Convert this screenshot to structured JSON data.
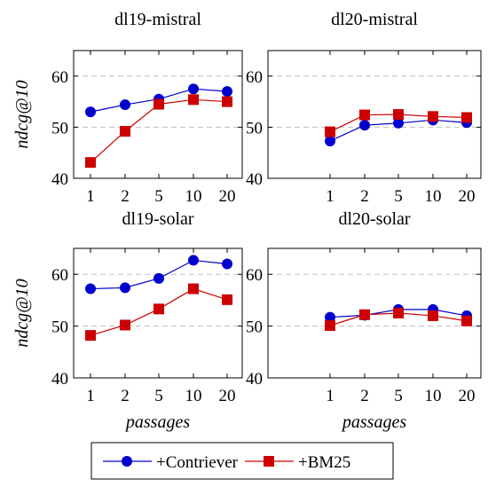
{
  "chart_data": [
    {
      "type": "line",
      "title": "dl19-mistral",
      "categories": [
        "1",
        "2",
        "5",
        "10",
        "20"
      ],
      "ylabel": "ndcg@10",
      "xlabel": "",
      "ylim": [
        40,
        65
      ],
      "yticks": [
        "40",
        "50",
        "60"
      ],
      "grid": "horizontal-dashed",
      "series": [
        {
          "name": "+Contriever",
          "values": [
            53.0,
            54.4,
            55.5,
            57.5,
            57.0
          ]
        },
        {
          "name": "+BM25",
          "values": [
            43.1,
            49.2,
            54.5,
            55.4,
            55.0
          ]
        }
      ]
    },
    {
      "type": "line",
      "title": "dl20-mistral",
      "categories": [
        "1",
        "2",
        "5",
        "10",
        "20"
      ],
      "ylabel": "",
      "xlabel": "",
      "ylim": [
        40,
        65
      ],
      "yticks": [
        "40",
        "50",
        "60"
      ],
      "grid": "horizontal-dashed",
      "series": [
        {
          "name": "+Contriever",
          "values": [
            47.3,
            50.4,
            50.8,
            51.4,
            50.9
          ]
        },
        {
          "name": "+BM25",
          "values": [
            49.1,
            52.4,
            52.5,
            52.1,
            51.9
          ]
        }
      ]
    },
    {
      "type": "line",
      "title": "dl19-solar",
      "categories": [
        "1",
        "2",
        "5",
        "10",
        "20"
      ],
      "ylabel": "ndcg@10",
      "xlabel": "passages",
      "ylim": [
        40,
        65
      ],
      "yticks": [
        "40",
        "50",
        "60"
      ],
      "grid": "horizontal-dashed",
      "series": [
        {
          "name": "+Contriever",
          "values": [
            57.2,
            57.4,
            59.2,
            62.7,
            62.0
          ]
        },
        {
          "name": "+BM25",
          "values": [
            48.2,
            50.2,
            53.3,
            57.2,
            55.1
          ]
        }
      ]
    },
    {
      "type": "line",
      "title": "dl20-solar",
      "categories": [
        "1",
        "2",
        "5",
        "10",
        "20"
      ],
      "ylabel": "",
      "xlabel": "passages",
      "ylim": [
        40,
        65
      ],
      "yticks": [
        "40",
        "50",
        "60"
      ],
      "grid": "horizontal-dashed",
      "series": [
        {
          "name": "+Contriever",
          "values": [
            51.7,
            52.1,
            53.2,
            53.2,
            52.0
          ]
        },
        {
          "name": "+BM25",
          "values": [
            50.1,
            52.2,
            52.5,
            52.0,
            51.0
          ]
        }
      ]
    }
  ],
  "legend": {
    "placement": "bottom-center",
    "entries": [
      {
        "label": "+Contriever",
        "marker": "circle",
        "color": "#0000cc"
      },
      {
        "label": "+BM25",
        "marker": "square",
        "color": "#cc0000"
      }
    ]
  },
  "colors": {
    "contriever": "#0000cc",
    "bm25": "#cc0000",
    "grid": "#bfbfbf"
  }
}
